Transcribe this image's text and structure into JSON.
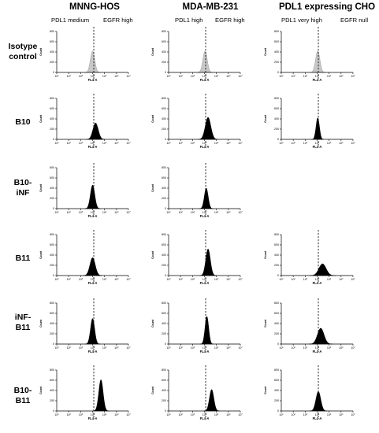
{
  "columns": [
    {
      "title": "MNNG-HOS",
      "subtitle_left": "PDL1 medium",
      "subtitle_right": "EGFR high"
    },
    {
      "title": "MDA-MB-231",
      "subtitle_left": "PDL1 high",
      "subtitle_right": "EGFR high"
    },
    {
      "title": "PDL1 expressing CHO",
      "subtitle_left": "PDL1 very high",
      "subtitle_right": "EGFR null"
    }
  ],
  "rows": [
    {
      "line1": "Isotype",
      "line2": "control"
    },
    {
      "line1": "B10",
      "line2": ""
    },
    {
      "line1": "B10-",
      "line2": "iNF"
    },
    {
      "line1": "B11",
      "line2": ""
    },
    {
      "line1": "iNF-",
      "line2": "B11"
    },
    {
      "line1": "B10-",
      "line2": "B11"
    }
  ],
  "chart_data": {
    "type": "area",
    "xlabel": "FL4-A",
    "ylabel": "Count",
    "x_scale": "log",
    "xlim": [
      10,
      10000000
    ],
    "x_ticks": [
      "10¹",
      "10²",
      "10³",
      "10⁴",
      "10⁵",
      "10⁶",
      "10⁷"
    ],
    "ylim": [
      0,
      800
    ],
    "y_ticks": [
      "0",
      "200",
      "400",
      "600",
      "800"
    ],
    "gate_line_log10": 4.1,
    "colors": {
      "isotype_fill": "#c8c8c8",
      "isotype_stroke": "#9a9a9a",
      "sample_fill": "#000000",
      "gate_line": "#000000"
    },
    "panels": [
      [
        {
          "peak_log10": 4.0,
          "peak_count": 420,
          "sigma_log10": 0.18,
          "fill": "isotype"
        },
        {
          "peak_log10": 4.05,
          "peak_count": 420,
          "sigma_log10": 0.18,
          "fill": "isotype"
        },
        {
          "peak_log10": 4.05,
          "peak_count": 420,
          "sigma_log10": 0.18,
          "fill": "isotype"
        }
      ],
      [
        {
          "peak_log10": 4.25,
          "peak_count": 320,
          "sigma_log10": 0.22,
          "fill": "sample"
        },
        {
          "peak_log10": 4.3,
          "peak_count": 430,
          "sigma_log10": 0.23,
          "fill": "sample"
        },
        {
          "peak_log10": 4.05,
          "peak_count": 420,
          "sigma_log10": 0.14,
          "fill": "sample"
        }
      ],
      [
        {
          "peak_log10": 4.0,
          "peak_count": 460,
          "sigma_log10": 0.18,
          "fill": "sample"
        },
        {
          "peak_log10": 4.15,
          "peak_count": 400,
          "sigma_log10": 0.16,
          "fill": "sample"
        },
        null
      ],
      [
        {
          "peak_log10": 4.0,
          "peak_count": 350,
          "sigma_log10": 0.22,
          "fill": "sample"
        },
        {
          "peak_log10": 4.3,
          "peak_count": 520,
          "sigma_log10": 0.19,
          "fill": "sample"
        },
        {
          "peak_log10": 4.45,
          "peak_count": 230,
          "sigma_log10": 0.3,
          "fill": "sample"
        }
      ],
      [
        {
          "peak_log10": 4.0,
          "peak_count": 500,
          "sigma_log10": 0.17,
          "fill": "sample"
        },
        {
          "peak_log10": 4.2,
          "peak_count": 540,
          "sigma_log10": 0.15,
          "fill": "sample"
        },
        {
          "peak_log10": 4.3,
          "peak_count": 310,
          "sigma_log10": 0.27,
          "fill": "sample"
        }
      ],
      [
        {
          "peak_log10": 4.7,
          "peak_count": 610,
          "sigma_log10": 0.18,
          "fill": "sample"
        },
        {
          "peak_log10": 4.6,
          "peak_count": 420,
          "sigma_log10": 0.18,
          "fill": "sample"
        },
        {
          "peak_log10": 4.1,
          "peak_count": 380,
          "sigma_log10": 0.2,
          "fill": "sample"
        }
      ]
    ]
  }
}
